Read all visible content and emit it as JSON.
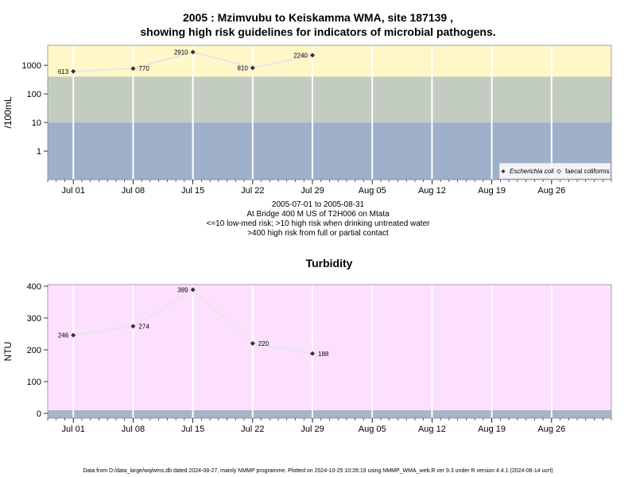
{
  "header": {
    "title_line1": "2005 : Mzimvubu to Keiskamma WMA, site 187139 ,",
    "title_line2": "showing high risk guidelines for indicators of microbial pathogens."
  },
  "caption": {
    "line1": "2005-07-01 to 2005-08-31",
    "line2": "At Bridge 400 M US of T2H006 on Mtata",
    "line3": "<=10 low-med risk; >10 high risk when drinking untreated water",
    "line4": ">400 high risk from full or partial contact"
  },
  "footer": {
    "text": "Data from D:/data_large/wq/wms.db dated 2024-08-27, mainly NMMP programme. Plotted on 2024-10-25 10:26:19 using NMMP_WMA_web.R ver 9.3 under R version 4.4.1 (2024-06-14 ucrt)"
  },
  "colors": {
    "high_risk_band": "#FFF7C8",
    "mid_risk_band": "#C3CCC0",
    "low_risk_band": "#9FB0CA",
    "turbidity_band": "#FDE0FD",
    "turbidity_base_band": "#A8B4C8",
    "series_line": "#E6E6E6",
    "marker": "#333333"
  },
  "chart_data": [
    {
      "type": "line",
      "title": "",
      "ylabel": "/100mL",
      "yscale": "log",
      "ylim": [
        0.1,
        5000
      ],
      "y_ticks": [
        1,
        10,
        100,
        1000
      ],
      "y_tick_labels": [
        "1",
        "10",
        "100",
        "1000"
      ],
      "x_ticks": [
        "2005-07-01",
        "2005-07-08",
        "2005-07-15",
        "2005-07-22",
        "2005-07-29",
        "2005-08-05",
        "2005-08-12",
        "2005-08-19",
        "2005-08-26"
      ],
      "x_tick_labels": [
        "Jul 01",
        "Jul 08",
        "Jul 15",
        "Jul 22",
        "Jul 29",
        "Aug 05",
        "Aug 12",
        "Aug 19",
        "Aug 26"
      ],
      "xlim": [
        "2005-06-28",
        "2005-09-02"
      ],
      "bands": [
        {
          "from": 400,
          "to": 5000,
          "color": "#FFF7C8"
        },
        {
          "from": 10,
          "to": 400,
          "color": "#C3CCC0"
        },
        {
          "from": 0.1,
          "to": 10,
          "color": "#9FB0CA"
        }
      ],
      "grid": true,
      "legend": {
        "position": "bottom-right",
        "entries": [
          "Escherichia coli",
          "faecal coliforms"
        ]
      },
      "series": [
        {
          "name": "Escherichia coli",
          "x": [
            "2005-07-01",
            "2005-07-08",
            "2005-07-15",
            "2005-07-22",
            "2005-07-29"
          ],
          "values": [
            613,
            770,
            2910,
            810,
            2240
          ],
          "labels": [
            "613",
            "770",
            "2910",
            "810",
            "2240"
          ]
        }
      ]
    },
    {
      "type": "line",
      "title": "Turbidity",
      "ylabel": "NTU",
      "ylim": [
        -15,
        405
      ],
      "y_ticks": [
        0,
        100,
        200,
        300,
        400
      ],
      "y_tick_labels": [
        "0",
        "100",
        "200",
        "300",
        "400"
      ],
      "x_ticks": [
        "2005-07-01",
        "2005-07-08",
        "2005-07-15",
        "2005-07-22",
        "2005-07-29",
        "2005-08-05",
        "2005-08-12",
        "2005-08-19",
        "2005-08-26"
      ],
      "x_tick_labels": [
        "Jul 01",
        "Jul 08",
        "Jul 15",
        "Jul 22",
        "Jul 29",
        "Aug 05",
        "Aug 12",
        "Aug 19",
        "Aug 26"
      ],
      "xlim": [
        "2005-06-28",
        "2005-09-02"
      ],
      "bands": [
        {
          "from": 10,
          "to": 405,
          "color": "#FDE0FD"
        },
        {
          "from": -15,
          "to": 10,
          "color": "#A8B4C8"
        }
      ],
      "grid": true,
      "series": [
        {
          "name": "",
          "x": [
            "2005-07-01",
            "2005-07-08",
            "2005-07-15",
            "2005-07-22",
            "2005-07-29"
          ],
          "values": [
            246,
            274,
            389,
            220,
            188
          ],
          "labels": [
            "246",
            "274",
            "389",
            "220",
            "188"
          ]
        }
      ]
    }
  ]
}
